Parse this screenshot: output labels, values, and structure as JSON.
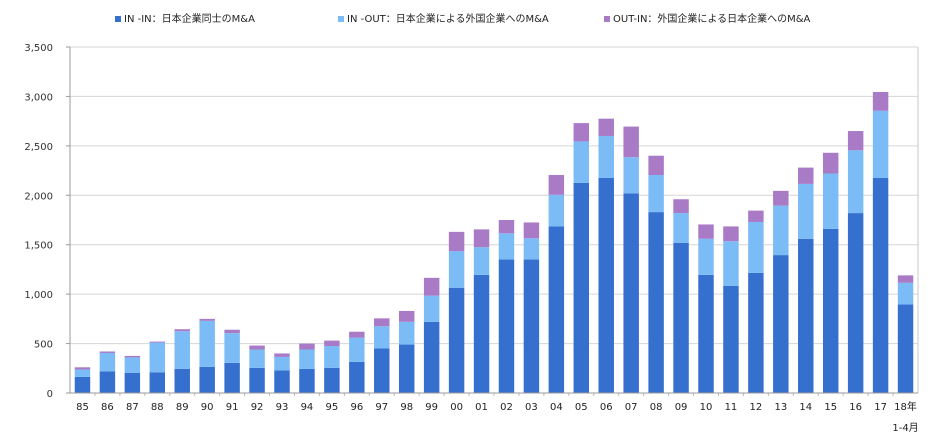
{
  "chart_data": {
    "type": "bar",
    "stacked": true,
    "title": "",
    "xlabel": "",
    "ylabel": "",
    "ylim": [
      0,
      3500
    ],
    "yticks": [
      0,
      500,
      1000,
      1500,
      2000,
      2500,
      3000,
      3500
    ],
    "ytick_labels": [
      "0",
      "500",
      "1,000",
      "1,500",
      "2,000",
      "2,500",
      "3,000",
      "3,500"
    ],
    "grid": true,
    "legend_position": "top",
    "categories": [
      "85",
      "86",
      "87",
      "88",
      "89",
      "90",
      "91",
      "92",
      "93",
      "94",
      "95",
      "96",
      "97",
      "98",
      "99",
      "00",
      "01",
      "02",
      "03",
      "04",
      "05",
      "06",
      "07",
      "08",
      "09",
      "10",
      "11",
      "12",
      "13",
      "14",
      "15",
      "16",
      "17",
      "18年"
    ],
    "category_sublabels": {
      "18年": "1-4月"
    },
    "series": [
      {
        "name": "IN -IN：日本企業同士のM&A",
        "color": "#3670cf",
        "values": [
          163,
          220,
          205,
          210,
          245,
          265,
          305,
          255,
          230,
          245,
          255,
          315,
          450,
          490,
          720,
          1065,
          1195,
          1350,
          1350,
          1685,
          2125,
          2175,
          2020,
          1830,
          1520,
          1195,
          1085,
          1215,
          1395,
          1560,
          1660,
          1820,
          2175,
          895
        ]
      },
      {
        "name": "IN -OUT：日本企業による外国企業へのM&A",
        "color": "#7bbcf7",
        "values": [
          75,
          185,
          155,
          300,
          380,
          465,
          300,
          185,
          135,
          195,
          220,
          245,
          225,
          230,
          265,
          370,
          280,
          265,
          215,
          320,
          420,
          425,
          365,
          375,
          300,
          365,
          450,
          515,
          500,
          555,
          560,
          635,
          680,
          220
        ]
      },
      {
        "name": "OUT-IN：外国企業による日本企業へのM&A",
        "color": "#a97ac6",
        "values": [
          22,
          15,
          15,
          10,
          20,
          20,
          35,
          40,
          35,
          60,
          55,
          60,
          80,
          110,
          180,
          195,
          180,
          135,
          160,
          200,
          185,
          175,
          310,
          195,
          140,
          145,
          150,
          115,
          150,
          165,
          210,
          195,
          190,
          75
        ]
      }
    ]
  }
}
